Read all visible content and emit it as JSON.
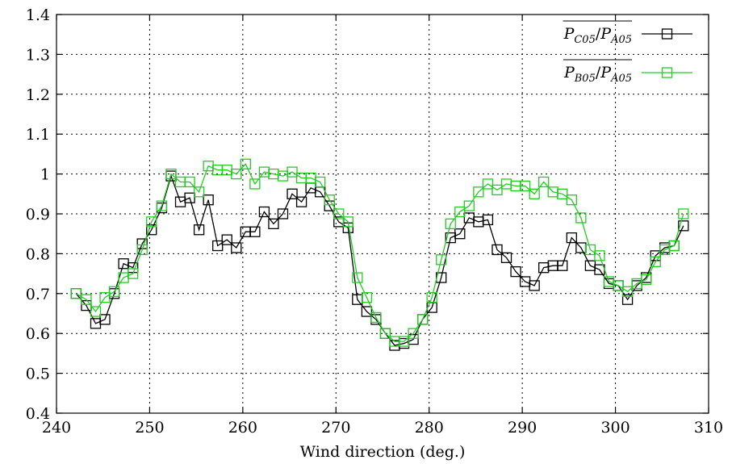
{
  "chart_data": {
    "type": "line",
    "xlabel": "Wind direction (deg.)",
    "ylabel": "",
    "xlim": [
      240,
      310
    ],
    "ylim": [
      0.4,
      1.4
    ],
    "xticks": [
      "240",
      "250",
      "260",
      "270",
      "280",
      "290",
      "300",
      "310"
    ],
    "yticks": [
      "0.4",
      "0.5",
      "0.6",
      "0.7",
      "0.8",
      "0.9",
      "1",
      "1.1",
      "1.2",
      "1.3",
      "1.4"
    ],
    "grid": true,
    "legend_position": "top-right",
    "series": [
      {
        "name": "P_C05/P_A05",
        "legend_main": "P",
        "legend_sub1": "C05",
        "legend_sub2": "A05",
        "color": "#000000",
        "marker": "square",
        "x": [
          242.1,
          243.2,
          244.2,
          245.2,
          246.2,
          247.2,
          248.2,
          249.2,
          250.2,
          251.3,
          252.3,
          253.3,
          254.3,
          255.3,
          256.3,
          257.3,
          258.3,
          259.3,
          260.3,
          261.3,
          262.3,
          263.3,
          264.3,
          265.3,
          266.3,
          267.3,
          268.3,
          269.3,
          270.3,
          271.3,
          272.3,
          273.3,
          274.3,
          275.3,
          276.3,
          277.3,
          278.3,
          279.3,
          280.3,
          281.3,
          282.3,
          283.3,
          284.3,
          285.3,
          286.3,
          287.3,
          288.3,
          289.3,
          290.3,
          291.3,
          292.3,
          293.3,
          294.3,
          295.3,
          296.3,
          297.3,
          298.3,
          299.3,
          300.3,
          301.3,
          302.3,
          303.3,
          304.3,
          305.3,
          306.3,
          307.3
        ],
        "y": [
          0.7,
          0.67,
          0.625,
          0.635,
          0.7,
          0.775,
          0.765,
          0.825,
          0.86,
          0.915,
          0.995,
          0.93,
          0.94,
          0.86,
          0.935,
          0.82,
          0.835,
          0.815,
          0.855,
          0.855,
          0.905,
          0.875,
          0.9,
          0.95,
          0.93,
          0.965,
          0.955,
          0.92,
          0.88,
          0.865,
          0.685,
          0.655,
          0.635,
          0.6,
          0.57,
          0.575,
          0.585,
          0.635,
          0.665,
          0.74,
          0.84,
          0.85,
          0.89,
          0.88,
          0.885,
          0.81,
          0.79,
          0.755,
          0.73,
          0.72,
          0.765,
          0.77,
          0.77,
          0.84,
          0.815,
          0.77,
          0.76,
          0.725,
          0.72,
          0.685,
          0.72,
          0.74,
          0.795,
          0.815,
          0.82,
          0.87
        ]
      },
      {
        "name": "P_B05/P_A05",
        "legend_main": "P",
        "legend_sub1": "B05",
        "legend_sub2": "A05",
        "color": "#22cc22",
        "marker": "square",
        "x": [
          242.1,
          243.2,
          244.2,
          245.2,
          246.2,
          247.2,
          248.2,
          249.2,
          250.2,
          251.3,
          252.3,
          253.3,
          254.3,
          255.3,
          256.3,
          257.3,
          258.3,
          259.3,
          260.3,
          261.3,
          262.3,
          263.3,
          264.3,
          265.3,
          266.3,
          267.3,
          268.3,
          269.3,
          270.3,
          271.3,
          272.3,
          273.3,
          274.3,
          275.3,
          276.3,
          277.3,
          278.3,
          279.3,
          280.3,
          281.3,
          282.3,
          283.3,
          284.3,
          285.3,
          286.3,
          287.3,
          288.3,
          289.3,
          290.3,
          291.3,
          292.3,
          293.3,
          294.3,
          295.3,
          296.3,
          297.3,
          298.3,
          299.3,
          300.3,
          301.3,
          302.3,
          303.3,
          304.3,
          305.3,
          306.3,
          307.3
        ],
        "y": [
          0.7,
          0.685,
          0.655,
          0.69,
          0.705,
          0.74,
          0.75,
          0.81,
          0.88,
          0.92,
          1.0,
          0.98,
          0.98,
          0.955,
          1.02,
          1.01,
          1.01,
          1.0,
          1.025,
          0.975,
          1.005,
          1.0,
          0.995,
          1.005,
          0.99,
          0.99,
          0.98,
          0.935,
          0.9,
          0.88,
          0.74,
          0.69,
          0.64,
          0.6,
          0.58,
          0.58,
          0.6,
          0.635,
          0.69,
          0.785,
          0.875,
          0.905,
          0.92,
          0.955,
          0.975,
          0.96,
          0.975,
          0.97,
          0.97,
          0.95,
          0.98,
          0.955,
          0.95,
          0.935,
          0.89,
          0.81,
          0.795,
          0.73,
          0.72,
          0.705,
          0.725,
          0.735,
          0.78,
          0.81,
          0.82,
          0.9
        ]
      }
    ]
  }
}
